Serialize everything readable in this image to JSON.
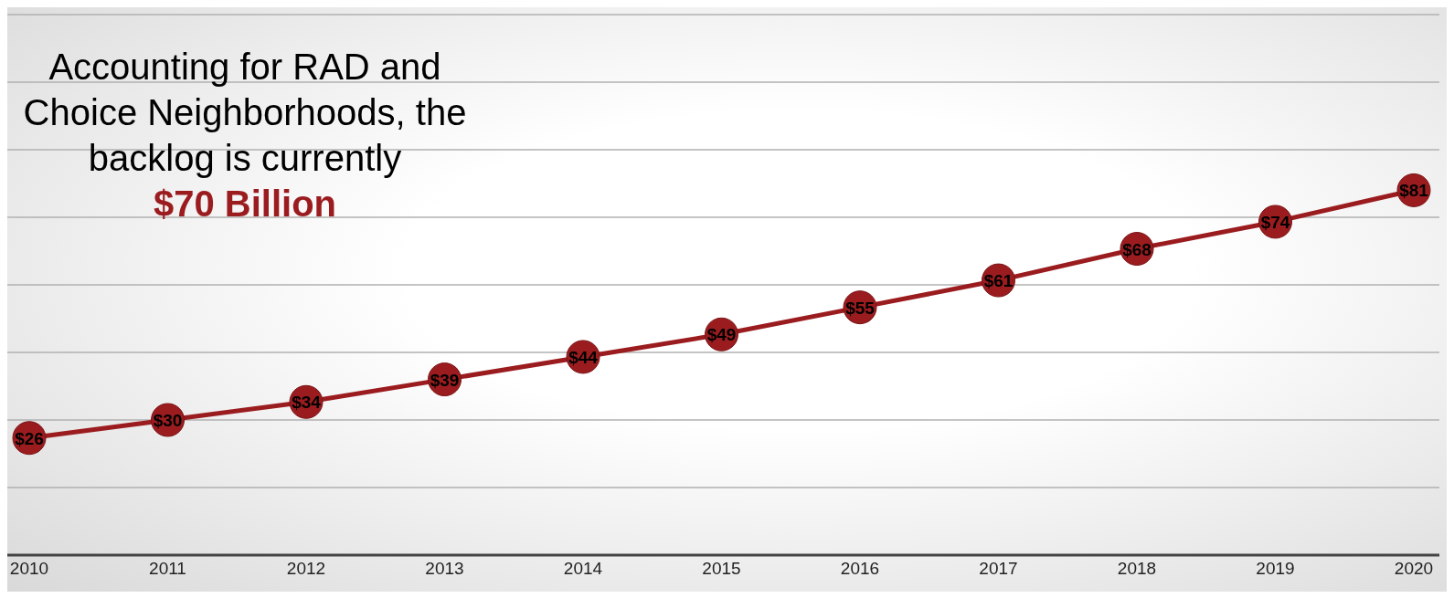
{
  "chart_data": {
    "type": "line",
    "categories": [
      "2010",
      "2011",
      "2012",
      "2013",
      "2014",
      "2015",
      "2016",
      "2017",
      "2018",
      "2019",
      "2020"
    ],
    "series": [
      {
        "color": "#9b1c1f",
        "values": [
          26,
          30,
          34,
          39,
          44,
          49,
          55,
          61,
          68,
          74,
          81
        ],
        "value_labels": [
          "$26",
          "$30",
          "$34",
          "$39",
          "$44",
          "$49",
          "$55",
          "$61",
          "$68",
          "$74",
          "$81"
        ]
      }
    ],
    "grid": "y",
    "tick_labels": "x",
    "marker": "circle",
    "line_style": "solid",
    "annotations": [
      "Accounting for RAD and Choice Neighborhoods, the backlog is currently",
      "$70 Billion"
    ]
  }
}
